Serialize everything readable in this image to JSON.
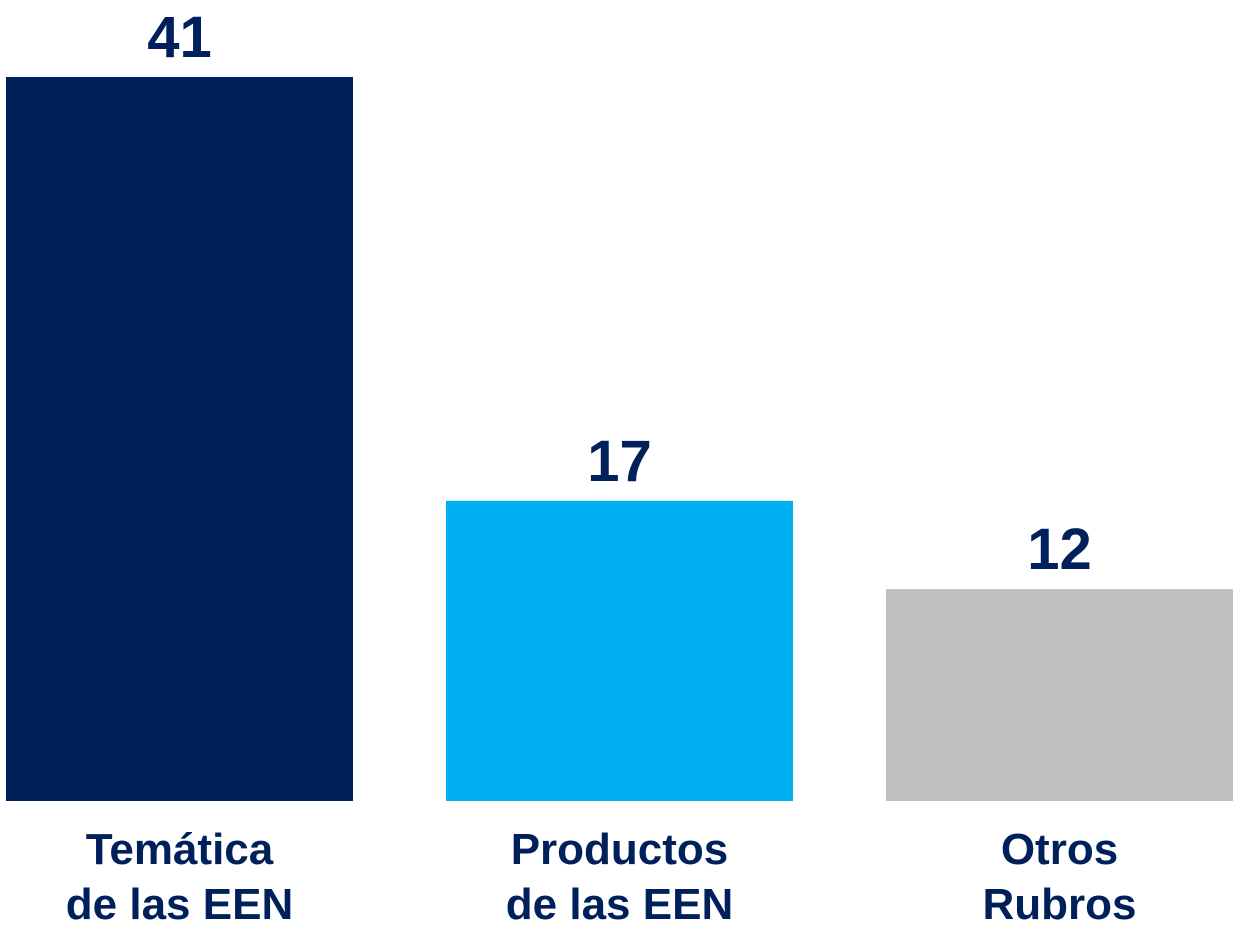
{
  "chart_data": {
    "type": "bar",
    "categories": [
      [
        "Temática",
        "de las EEN"
      ],
      [
        "Productos",
        "de las EEN"
      ],
      [
        "Otros",
        "Rubros"
      ]
    ],
    "values": [
      41,
      17,
      12
    ],
    "colors": [
      "#00205b",
      "#00b0f0",
      "#bfbfbf"
    ],
    "label_color": "#00205b",
    "title": "",
    "xlabel": "",
    "ylabel": "",
    "ylim": [
      0,
      41
    ],
    "grid": false,
    "legend": "none"
  }
}
